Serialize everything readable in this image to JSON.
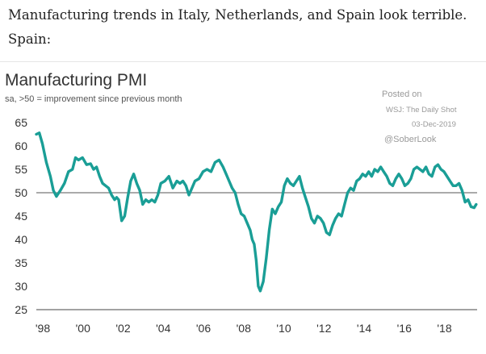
{
  "intro": {
    "line1": "Manufacturing trends in Italy, Netherlands, and Spain look terrible.",
    "line2": "Spain:"
  },
  "watermark": {
    "posted_on": "Posted on",
    "source": "WSJ: The Daily Shot",
    "date": "03-Dec-2019",
    "handle": "@SoberLook"
  },
  "colors": {
    "line": "#1a9e96",
    "reference": "#777777",
    "axis": "#444444"
  },
  "chart_data": {
    "type": "line",
    "title": "Manufacturing PMI",
    "subtitle": "sa, >50 = improvement since previous month",
    "xlabel": "",
    "ylabel": "",
    "xlim": [
      1998.0,
      2019.95
    ],
    "ylim": [
      25,
      65
    ],
    "yticks": [
      25,
      30,
      35,
      40,
      45,
      50,
      55,
      60,
      65
    ],
    "xtick_values": [
      1998,
      2000,
      2002,
      2004,
      2006,
      2008,
      2010,
      2012,
      2014,
      2016,
      2018
    ],
    "xtick_labels": [
      "'98",
      "'00",
      "'02",
      "'04",
      "'06",
      "'08",
      "'10",
      "'12",
      "'14",
      "'16",
      "'18"
    ],
    "reference_line": 50,
    "series": [
      {
        "name": "Spain Manufacturing PMI",
        "x": [
          1998.0,
          1998.15,
          1998.3,
          1998.5,
          1998.7,
          1998.85,
          1999.0,
          1999.2,
          1999.4,
          1999.6,
          1999.8,
          1999.95,
          2000.1,
          2000.3,
          2000.5,
          2000.7,
          2000.85,
          2001.0,
          2001.15,
          2001.3,
          2001.45,
          2001.6,
          2001.75,
          2001.9,
          2002.0,
          2002.1,
          2002.25,
          2002.4,
          2002.55,
          2002.7,
          2002.85,
          2003.0,
          2003.15,
          2003.3,
          2003.45,
          2003.6,
          2003.75,
          2003.9,
          2004.05,
          2004.2,
          2004.4,
          2004.6,
          2004.8,
          2005.0,
          2005.15,
          2005.3,
          2005.45,
          2005.6,
          2005.75,
          2005.9,
          2006.1,
          2006.3,
          2006.5,
          2006.7,
          2006.9,
          2007.1,
          2007.3,
          2007.45,
          2007.6,
          2007.75,
          2007.9,
          2008.05,
          2008.2,
          2008.35,
          2008.5,
          2008.65,
          2008.75,
          2008.85,
          2008.95,
          2009.05,
          2009.15,
          2009.3,
          2009.45,
          2009.6,
          2009.75,
          2009.9,
          2010.05,
          2010.2,
          2010.35,
          2010.5,
          2010.65,
          2010.8,
          2010.95,
          2011.1,
          2011.25,
          2011.4,
          2011.55,
          2011.7,
          2011.85,
          2012.0,
          2012.15,
          2012.3,
          2012.45,
          2012.6,
          2012.75,
          2012.9,
          2013.05,
          2013.2,
          2013.35,
          2013.5,
          2013.65,
          2013.8,
          2013.95,
          2014.1,
          2014.25,
          2014.4,
          2014.55,
          2014.7,
          2014.85,
          2015.0,
          2015.15,
          2015.3,
          2015.45,
          2015.6,
          2015.75,
          2015.9,
          2016.05,
          2016.2,
          2016.35,
          2016.5,
          2016.65,
          2016.8,
          2016.95,
          2017.1,
          2017.25,
          2017.4,
          2017.55,
          2017.7,
          2017.85,
          2018.0,
          2018.15,
          2018.3,
          2018.45,
          2018.6,
          2018.75,
          2018.9,
          2019.05,
          2019.2,
          2019.35,
          2019.5,
          2019.65,
          2019.8,
          2019.9
        ],
        "values": [
          62.5,
          62.8,
          60.5,
          56.5,
          53.5,
          50.5,
          49.2,
          50.5,
          52.0,
          54.5,
          55.0,
          57.5,
          57.0,
          57.5,
          56.0,
          56.2,
          55.0,
          55.5,
          53.5,
          52.0,
          51.5,
          51.0,
          49.5,
          48.5,
          49.0,
          48.5,
          44.0,
          45.0,
          49.0,
          52.5,
          54.0,
          52.0,
          50.5,
          47.5,
          48.5,
          48.0,
          48.5,
          48.0,
          49.5,
          52.0,
          52.5,
          53.5,
          51.0,
          52.5,
          52.0,
          52.5,
          51.5,
          49.5,
          51.0,
          52.5,
          53.0,
          54.5,
          55.0,
          54.5,
          56.5,
          57.0,
          55.5,
          54.0,
          52.5,
          51.0,
          50.0,
          47.5,
          45.5,
          45.0,
          43.5,
          42.0,
          40.0,
          39.0,
          35.5,
          30.0,
          29.0,
          31.0,
          36.0,
          42.0,
          46.5,
          45.5,
          47.0,
          48.0,
          51.5,
          53.0,
          52.0,
          51.5,
          52.5,
          53.5,
          51.0,
          49.0,
          47.0,
          44.5,
          43.5,
          45.0,
          44.5,
          43.5,
          41.5,
          41.0,
          43.0,
          44.5,
          45.5,
          45.0,
          47.5,
          50.0,
          51.0,
          50.5,
          52.5,
          53.0,
          54.0,
          53.5,
          54.5,
          53.5,
          55.0,
          54.5,
          55.5,
          54.5,
          53.5,
          52.0,
          51.5,
          53.0,
          54.0,
          53.0,
          51.5,
          52.0,
          53.0,
          55.0,
          55.5,
          55.0,
          54.5,
          55.5,
          54.0,
          53.5,
          55.5,
          56.0,
          55.0,
          54.5,
          53.5,
          52.5,
          51.5,
          51.5,
          52.0,
          50.5,
          48.0,
          48.5,
          47.0,
          46.8,
          47.5
        ]
      }
    ]
  }
}
